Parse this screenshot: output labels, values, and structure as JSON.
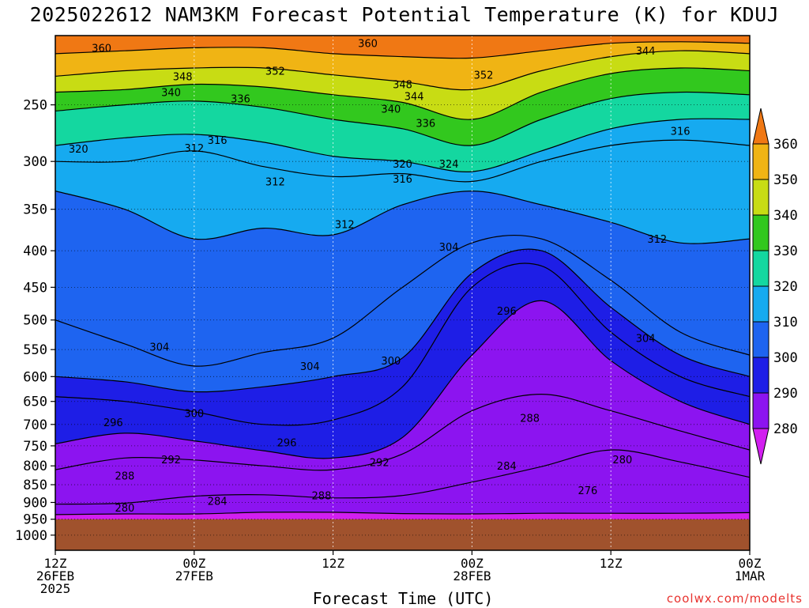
{
  "title": "2025022612 NAM3KM Forecast Potential Temperature (K) for KDUJ",
  "credit": "coolwx.com/modelts",
  "chart_data": {
    "type": "contour",
    "title": "2025022612 NAM3KM Forecast Potential Temperature (K) for KDUJ",
    "xlabel": "Forecast Time (UTC)",
    "ylabel": "",
    "y_ticks": [
      250,
      300,
      350,
      400,
      450,
      500,
      550,
      600,
      650,
      700,
      750,
      800,
      850,
      900,
      950,
      1000
    ],
    "y_scale": "log-pressure",
    "ylim": [
      1050,
      200
    ],
    "x_ticks": [
      {
        "hour": 0,
        "lines": [
          "12Z",
          "26FEB",
          "2025"
        ]
      },
      {
        "hour": 12,
        "lines": [
          "00Z",
          "27FEB"
        ]
      },
      {
        "hour": 24,
        "lines": [
          "12Z"
        ]
      },
      {
        "hour": 36,
        "lines": [
          "00Z",
          "28FEB"
        ]
      },
      {
        "hour": 48,
        "lines": [
          "12Z"
        ]
      },
      {
        "hour": 60,
        "lines": [
          "00Z",
          "1MAR"
        ]
      }
    ],
    "xlim": [
      0,
      60
    ],
    "colorbar": {
      "levels": [
        280,
        290,
        300,
        310,
        320,
        330,
        340,
        350,
        360
      ],
      "colors": [
        "#d21ff0",
        "#8c14f0",
        "#1e1ee6",
        "#1e64f0",
        "#16aaf0",
        "#14d7a0",
        "#32c81e",
        "#c8dc14",
        "#f0b414",
        "#f07814"
      ]
    },
    "surface_pressure": 950,
    "surface_color": "#a0522d",
    "grid": true,
    "isentropes": [
      {
        "theta": 280,
        "points": [
          [
            0,
            936
          ],
          [
            6,
            934
          ],
          [
            12,
            934
          ],
          [
            18,
            929
          ],
          [
            24,
            929
          ],
          [
            30,
            933
          ],
          [
            36,
            934
          ],
          [
            42,
            932
          ],
          [
            48,
            932
          ],
          [
            54,
            932
          ],
          [
            60,
            930
          ]
        ]
      },
      {
        "theta": 284,
        "points": [
          [
            0,
            905
          ],
          [
            6,
            902
          ],
          [
            12,
            882
          ],
          [
            18,
            878
          ],
          [
            24,
            887
          ],
          [
            30,
            880
          ],
          [
            36,
            843
          ],
          [
            42,
            802
          ],
          [
            48,
            760
          ],
          [
            54,
            790
          ],
          [
            60,
            830
          ]
        ]
      },
      {
        "theta": 288,
        "points": [
          [
            0,
            810
          ],
          [
            6,
            780
          ],
          [
            12,
            785
          ],
          [
            18,
            800
          ],
          [
            24,
            810
          ],
          [
            30,
            770
          ],
          [
            36,
            670
          ],
          [
            42,
            635
          ],
          [
            48,
            670
          ],
          [
            54,
            715
          ],
          [
            60,
            760
          ]
        ]
      },
      {
        "theta": 292,
        "points": [
          [
            0,
            745
          ],
          [
            6,
            720
          ],
          [
            12,
            738
          ],
          [
            18,
            762
          ],
          [
            24,
            780
          ],
          [
            30,
            730
          ],
          [
            36,
            560
          ],
          [
            42,
            470
          ],
          [
            48,
            570
          ],
          [
            54,
            650
          ],
          [
            60,
            700
          ]
        ]
      },
      {
        "theta": 296,
        "points": [
          [
            0,
            640
          ],
          [
            6,
            650
          ],
          [
            12,
            672
          ],
          [
            18,
            700
          ],
          [
            24,
            690
          ],
          [
            30,
            620
          ],
          [
            36,
            450
          ],
          [
            42,
            420
          ],
          [
            48,
            520
          ],
          [
            54,
            600
          ],
          [
            60,
            640
          ]
        ]
      },
      {
        "theta": 300,
        "points": [
          [
            0,
            600
          ],
          [
            6,
            610
          ],
          [
            12,
            630
          ],
          [
            18,
            620
          ],
          [
            24,
            600
          ],
          [
            30,
            565
          ],
          [
            36,
            430
          ],
          [
            42,
            400
          ],
          [
            48,
            480
          ],
          [
            54,
            560
          ],
          [
            60,
            600
          ]
        ]
      },
      {
        "theta": 304,
        "points": [
          [
            0,
            500
          ],
          [
            6,
            540
          ],
          [
            12,
            580
          ],
          [
            18,
            555
          ],
          [
            24,
            530
          ],
          [
            30,
            450
          ],
          [
            36,
            390
          ],
          [
            42,
            385
          ],
          [
            48,
            440
          ],
          [
            54,
            520
          ],
          [
            60,
            560
          ]
        ]
      },
      {
        "theta": 312,
        "points": [
          [
            0,
            330
          ],
          [
            6,
            350
          ],
          [
            12,
            385
          ],
          [
            18,
            372
          ],
          [
            24,
            380
          ],
          [
            30,
            345
          ],
          [
            36,
            330
          ],
          [
            42,
            345
          ],
          [
            48,
            365
          ],
          [
            54,
            390
          ],
          [
            60,
            385
          ]
        ]
      },
      {
        "theta": 316,
        "points": [
          [
            0,
            300
          ],
          [
            6,
            300
          ],
          [
            12,
            290
          ],
          [
            18,
            305
          ],
          [
            24,
            315
          ],
          [
            30,
            312
          ],
          [
            36,
            320
          ],
          [
            42,
            300
          ],
          [
            48,
            285
          ],
          [
            54,
            280
          ],
          [
            60,
            285
          ]
        ]
      },
      {
        "theta": 320,
        "points": [
          [
            0,
            285
          ],
          [
            6,
            278
          ],
          [
            12,
            275
          ],
          [
            18,
            282
          ],
          [
            24,
            295
          ],
          [
            30,
            300
          ],
          [
            36,
            310
          ],
          [
            42,
            290
          ],
          [
            48,
            270
          ],
          [
            54,
            262
          ],
          [
            60,
            262
          ]
        ]
      },
      {
        "theta": 336,
        "points": [
          [
            0,
            255
          ],
          [
            6,
            250
          ],
          [
            12,
            247
          ],
          [
            18,
            252
          ],
          [
            24,
            262
          ],
          [
            30,
            270
          ],
          [
            36,
            285
          ],
          [
            42,
            262
          ],
          [
            48,
            245
          ],
          [
            54,
            240
          ],
          [
            60,
            242
          ]
        ]
      },
      {
        "theta": 344,
        "points": [
          [
            0,
            240
          ],
          [
            6,
            238
          ],
          [
            12,
            234
          ],
          [
            18,
            236
          ],
          [
            24,
            242
          ],
          [
            30,
            248
          ],
          [
            36,
            262
          ],
          [
            42,
            240
          ],
          [
            48,
            226
          ],
          [
            54,
            222
          ],
          [
            60,
            224
          ]
        ]
      },
      {
        "theta": 352,
        "points": [
          [
            0,
            228
          ],
          [
            6,
            224
          ],
          [
            12,
            222
          ],
          [
            18,
            222
          ],
          [
            24,
            227
          ],
          [
            30,
            232
          ],
          [
            36,
            238
          ],
          [
            42,
            224
          ],
          [
            48,
            214
          ],
          [
            54,
            210
          ],
          [
            60,
            212
          ]
        ]
      },
      {
        "theta": 360,
        "points": [
          [
            0,
            212
          ],
          [
            6,
            210
          ],
          [
            12,
            208
          ],
          [
            18,
            208
          ],
          [
            24,
            212
          ],
          [
            30,
            214
          ],
          [
            36,
            215
          ],
          [
            42,
            210
          ],
          [
            48,
            205
          ],
          [
            54,
            204
          ],
          [
            60,
            205
          ]
        ]
      }
    ],
    "contour_labels": [
      {
        "text": "360",
        "hour": 4.0,
        "pressure": 208
      },
      {
        "text": "360",
        "hour": 27.0,
        "pressure": 205
      },
      {
        "text": "344",
        "hour": 51.0,
        "pressure": 210
      },
      {
        "text": "348",
        "hour": 11.0,
        "pressure": 228
      },
      {
        "text": "352",
        "hour": 19.0,
        "pressure": 224
      },
      {
        "text": "352",
        "hour": 37.0,
        "pressure": 227
      },
      {
        "text": "340",
        "hour": 10.0,
        "pressure": 240
      },
      {
        "text": "336",
        "hour": 16.0,
        "pressure": 245
      },
      {
        "text": "348",
        "hour": 30.0,
        "pressure": 234
      },
      {
        "text": "344",
        "hour": 31.0,
        "pressure": 243
      },
      {
        "text": "340",
        "hour": 29.0,
        "pressure": 253
      },
      {
        "text": "336",
        "hour": 32.0,
        "pressure": 265
      },
      {
        "text": "320",
        "hour": 2.0,
        "pressure": 288
      },
      {
        "text": "312",
        "hour": 12.0,
        "pressure": 287
      },
      {
        "text": "316",
        "hour": 14.0,
        "pressure": 280
      },
      {
        "text": "316",
        "hour": 54.0,
        "pressure": 272
      },
      {
        "text": "320",
        "hour": 30.0,
        "pressure": 302
      },
      {
        "text": "324",
        "hour": 34.0,
        "pressure": 302
      },
      {
        "text": "316",
        "hour": 30.0,
        "pressure": 317
      },
      {
        "text": "312",
        "hour": 19.0,
        "pressure": 320
      },
      {
        "text": "312",
        "hour": 25.0,
        "pressure": 367
      },
      {
        "text": "312",
        "hour": 52.0,
        "pressure": 385
      },
      {
        "text": "304",
        "hour": 34.0,
        "pressure": 395
      },
      {
        "text": "296",
        "hour": 39.0,
        "pressure": 485
      },
      {
        "text": "304",
        "hour": 9.0,
        "pressure": 545
      },
      {
        "text": "304",
        "hour": 22.0,
        "pressure": 580
      },
      {
        "text": "300",
        "hour": 29.0,
        "pressure": 570
      },
      {
        "text": "304",
        "hour": 51.0,
        "pressure": 530
      },
      {
        "text": "296",
        "hour": 5.0,
        "pressure": 695
      },
      {
        "text": "300",
        "hour": 12.0,
        "pressure": 675
      },
      {
        "text": "296",
        "hour": 20.0,
        "pressure": 742
      },
      {
        "text": "288",
        "hour": 41.0,
        "pressure": 685
      },
      {
        "text": "292",
        "hour": 10.0,
        "pressure": 783
      },
      {
        "text": "292",
        "hour": 28.0,
        "pressure": 790
      },
      {
        "text": "284",
        "hour": 39.0,
        "pressure": 800
      },
      {
        "text": "280",
        "hour": 49.0,
        "pressure": 783
      },
      {
        "text": "288",
        "hour": 6.0,
        "pressure": 825
      },
      {
        "text": "276",
        "hour": 46.0,
        "pressure": 865
      },
      {
        "text": "284",
        "hour": 14.0,
        "pressure": 895
      },
      {
        "text": "288",
        "hour": 23.0,
        "pressure": 880
      },
      {
        "text": "280",
        "hour": 6.0,
        "pressure": 915
      }
    ]
  }
}
